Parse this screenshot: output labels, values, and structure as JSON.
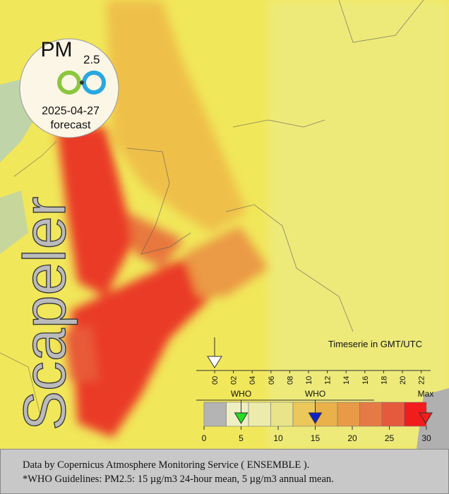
{
  "badge": {
    "title": "PM",
    "subscript": "2.5",
    "date": "2025-04-27",
    "label": "forecast"
  },
  "brand": "Scapeler",
  "timeline": {
    "title": "Timeserie in GMT/UTC",
    "hours": [
      "00",
      "02",
      "04",
      "06",
      "08",
      "10",
      "12",
      "14",
      "16",
      "18",
      "20",
      "22"
    ]
  },
  "legend": {
    "markers": [
      {
        "label": "WHO",
        "value": 5,
        "color": "#22dd22"
      },
      {
        "label": "WHO",
        "value": 15,
        "color": "#1122cc"
      }
    ],
    "max_label": "Max",
    "xlim": [
      0,
      30
    ],
    "ticks": [
      0,
      5,
      10,
      15,
      20,
      25,
      30
    ],
    "bins": [
      0,
      3,
      6,
      9,
      12,
      15,
      18,
      21,
      24,
      27,
      30
    ],
    "colors": [
      "#b4b4b4",
      "#eef0c4",
      "#ecebac",
      "#e9e48a",
      "#ecc85a",
      "#eab04a",
      "#e89a46",
      "#e67a44",
      "#e55a3c",
      "#f21c1c"
    ]
  },
  "footer": [
    "Data by Copernicus Atmosphere Monitoring Service ( ENSEMBLE ).",
    "*WHO Guidelines: PM2.5: 15 µg/m3 24-hour mean, 5 µg/m3 annual mean."
  ]
}
